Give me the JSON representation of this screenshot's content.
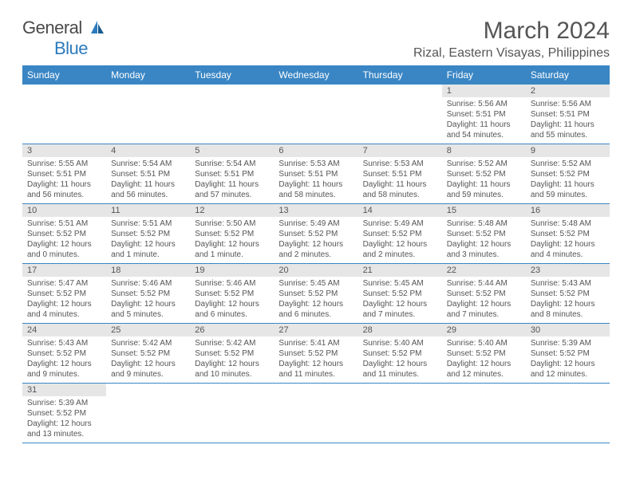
{
  "logo": {
    "text1": "Genera",
    "text2": "l",
    "text3": "Blue"
  },
  "title": "March 2024",
  "location": "Rizal, Eastern Visayas, Philippines",
  "colors": {
    "header_bg": "#3a86c4",
    "header_text": "#ffffff",
    "daynum_bg": "#e6e6e6",
    "border": "#3a86c4",
    "body_text": "#555555",
    "logo_blue": "#2b7bbd"
  },
  "day_headers": [
    "Sunday",
    "Monday",
    "Tuesday",
    "Wednesday",
    "Thursday",
    "Friday",
    "Saturday"
  ],
  "weeks": [
    [
      null,
      null,
      null,
      null,
      null,
      {
        "n": "1",
        "sr": "5:56 AM",
        "ss": "5:51 PM",
        "dl": "11 hours and 54 minutes."
      },
      {
        "n": "2",
        "sr": "5:56 AM",
        "ss": "5:51 PM",
        "dl": "11 hours and 55 minutes."
      }
    ],
    [
      {
        "n": "3",
        "sr": "5:55 AM",
        "ss": "5:51 PM",
        "dl": "11 hours and 56 minutes."
      },
      {
        "n": "4",
        "sr": "5:54 AM",
        "ss": "5:51 PM",
        "dl": "11 hours and 56 minutes."
      },
      {
        "n": "5",
        "sr": "5:54 AM",
        "ss": "5:51 PM",
        "dl": "11 hours and 57 minutes."
      },
      {
        "n": "6",
        "sr": "5:53 AM",
        "ss": "5:51 PM",
        "dl": "11 hours and 58 minutes."
      },
      {
        "n": "7",
        "sr": "5:53 AM",
        "ss": "5:51 PM",
        "dl": "11 hours and 58 minutes."
      },
      {
        "n": "8",
        "sr": "5:52 AM",
        "ss": "5:52 PM",
        "dl": "11 hours and 59 minutes."
      },
      {
        "n": "9",
        "sr": "5:52 AM",
        "ss": "5:52 PM",
        "dl": "11 hours and 59 minutes."
      }
    ],
    [
      {
        "n": "10",
        "sr": "5:51 AM",
        "ss": "5:52 PM",
        "dl": "12 hours and 0 minutes."
      },
      {
        "n": "11",
        "sr": "5:51 AM",
        "ss": "5:52 PM",
        "dl": "12 hours and 1 minute."
      },
      {
        "n": "12",
        "sr": "5:50 AM",
        "ss": "5:52 PM",
        "dl": "12 hours and 1 minute."
      },
      {
        "n": "13",
        "sr": "5:49 AM",
        "ss": "5:52 PM",
        "dl": "12 hours and 2 minutes."
      },
      {
        "n": "14",
        "sr": "5:49 AM",
        "ss": "5:52 PM",
        "dl": "12 hours and 2 minutes."
      },
      {
        "n": "15",
        "sr": "5:48 AM",
        "ss": "5:52 PM",
        "dl": "12 hours and 3 minutes."
      },
      {
        "n": "16",
        "sr": "5:48 AM",
        "ss": "5:52 PM",
        "dl": "12 hours and 4 minutes."
      }
    ],
    [
      {
        "n": "17",
        "sr": "5:47 AM",
        "ss": "5:52 PM",
        "dl": "12 hours and 4 minutes."
      },
      {
        "n": "18",
        "sr": "5:46 AM",
        "ss": "5:52 PM",
        "dl": "12 hours and 5 minutes."
      },
      {
        "n": "19",
        "sr": "5:46 AM",
        "ss": "5:52 PM",
        "dl": "12 hours and 6 minutes."
      },
      {
        "n": "20",
        "sr": "5:45 AM",
        "ss": "5:52 PM",
        "dl": "12 hours and 6 minutes."
      },
      {
        "n": "21",
        "sr": "5:45 AM",
        "ss": "5:52 PM",
        "dl": "12 hours and 7 minutes."
      },
      {
        "n": "22",
        "sr": "5:44 AM",
        "ss": "5:52 PM",
        "dl": "12 hours and 7 minutes."
      },
      {
        "n": "23",
        "sr": "5:43 AM",
        "ss": "5:52 PM",
        "dl": "12 hours and 8 minutes."
      }
    ],
    [
      {
        "n": "24",
        "sr": "5:43 AM",
        "ss": "5:52 PM",
        "dl": "12 hours and 9 minutes."
      },
      {
        "n": "25",
        "sr": "5:42 AM",
        "ss": "5:52 PM",
        "dl": "12 hours and 9 minutes."
      },
      {
        "n": "26",
        "sr": "5:42 AM",
        "ss": "5:52 PM",
        "dl": "12 hours and 10 minutes."
      },
      {
        "n": "27",
        "sr": "5:41 AM",
        "ss": "5:52 PM",
        "dl": "12 hours and 11 minutes."
      },
      {
        "n": "28",
        "sr": "5:40 AM",
        "ss": "5:52 PM",
        "dl": "12 hours and 11 minutes."
      },
      {
        "n": "29",
        "sr": "5:40 AM",
        "ss": "5:52 PM",
        "dl": "12 hours and 12 minutes."
      },
      {
        "n": "30",
        "sr": "5:39 AM",
        "ss": "5:52 PM",
        "dl": "12 hours and 12 minutes."
      }
    ],
    [
      {
        "n": "31",
        "sr": "5:39 AM",
        "ss": "5:52 PM",
        "dl": "12 hours and 13 minutes."
      },
      null,
      null,
      null,
      null,
      null,
      null
    ]
  ],
  "labels": {
    "sunrise": "Sunrise:",
    "sunset": "Sunset:",
    "daylight": "Daylight:"
  }
}
